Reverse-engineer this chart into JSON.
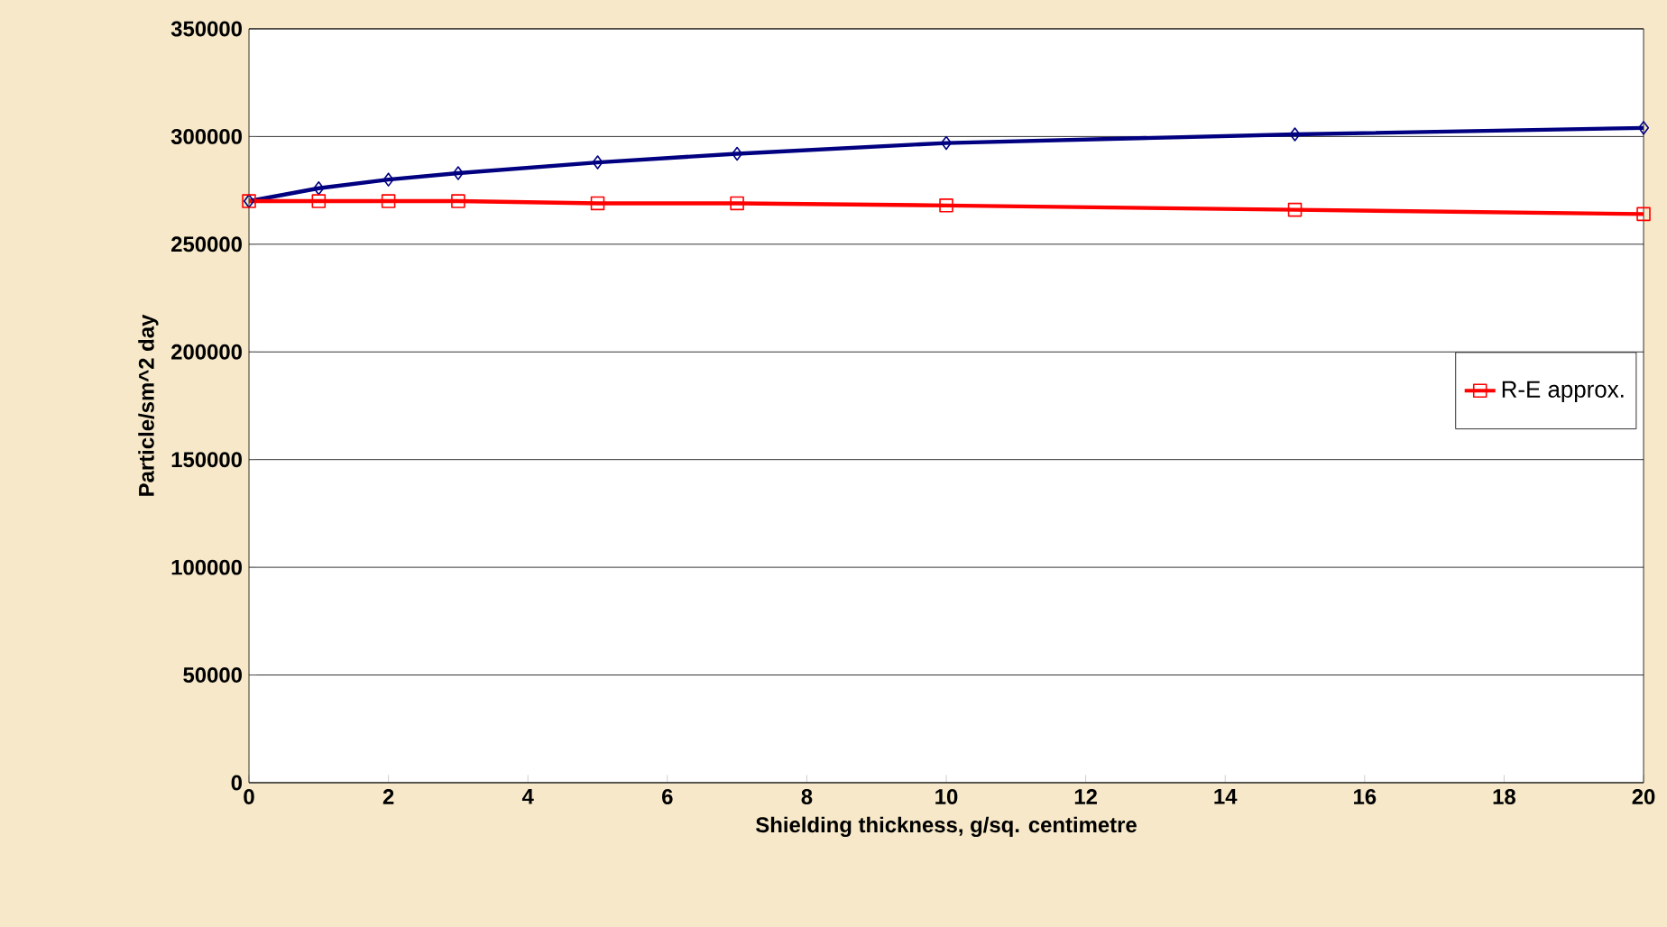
{
  "chart_data": {
    "type": "line",
    "xlabel": "Shielding thickness, g/sq. centimetre",
    "ylabel": "Particle/sm^2 day",
    "xlim": [
      0,
      20
    ],
    "xticks": [
      0,
      2,
      4,
      6,
      8,
      10,
      12,
      14,
      16,
      18,
      20
    ],
    "ylim": [
      0,
      350000
    ],
    "yticks": [
      0,
      50000,
      100000,
      150000,
      200000,
      250000,
      300000,
      350000
    ],
    "grid": "y",
    "legend": "right",
    "series": [
      {
        "color": "#000080",
        "marker": "diamond",
        "x": [
          0,
          1,
          2,
          3,
          5,
          7,
          10,
          15,
          20
        ],
        "values": [
          270000,
          276000,
          280000,
          283000,
          288000,
          292000,
          297000,
          301000,
          304000
        ]
      },
      {
        "name": "R-E approx.",
        "color": "#ff0000",
        "marker": "square",
        "x": [
          0,
          1,
          2,
          3,
          5,
          7,
          10,
          15,
          20
        ],
        "values": [
          270000,
          270000,
          270000,
          270000,
          269000,
          269000,
          268000,
          266000,
          264000
        ]
      }
    ]
  }
}
